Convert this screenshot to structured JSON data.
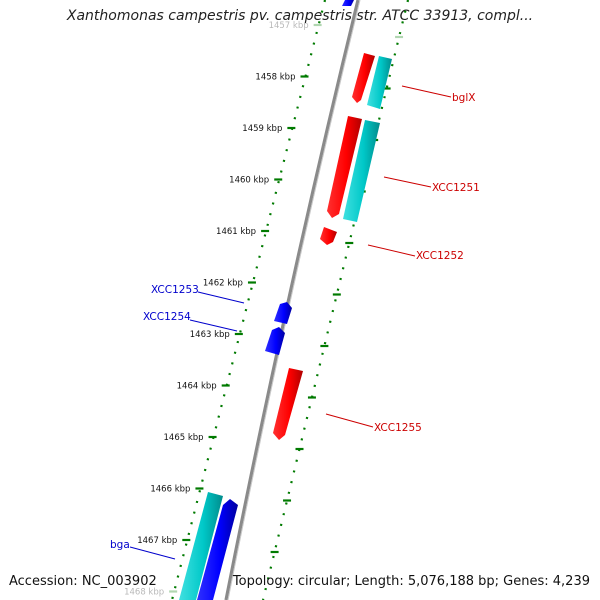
{
  "title": "Xanthomonas campestris pv. campestris str. ATCC 33913, compl...",
  "accession": "Accession: NC_003902",
  "topology": "Topology: circular; Length: 5,076,188 bp; Genes: 4,239",
  "colors": {
    "backbone": "#808080",
    "forward_gene": "#ff0000",
    "reverse_gene": "#0000ff",
    "cds_track": "#00c8c8",
    "tick": "#007a00",
    "forward_label": "#cc0000",
    "reverse_label": "#0000cc"
  },
  "ticks": [
    {
      "label": "1457 kbp"
    },
    {
      "label": "1458 kbp"
    },
    {
      "label": "1459 kbp"
    },
    {
      "label": "1460 kbp"
    },
    {
      "label": "1461 kbp"
    },
    {
      "label": "1462 kbp"
    },
    {
      "label": "1463 kbp"
    },
    {
      "label": "1464 kbp"
    },
    {
      "label": "1465 kbp"
    },
    {
      "label": "1466 kbp"
    },
    {
      "label": "1467 kbp"
    },
    {
      "label": "1468 kbp"
    }
  ],
  "gene_labels": {
    "bglX": "bglX",
    "XCC1251": "XCC1251",
    "XCC1252": "XCC1252",
    "XCC1253": "XCC1253",
    "XCC1254": "XCC1254",
    "XCC1255": "XCC1255",
    "bga": "bga"
  }
}
